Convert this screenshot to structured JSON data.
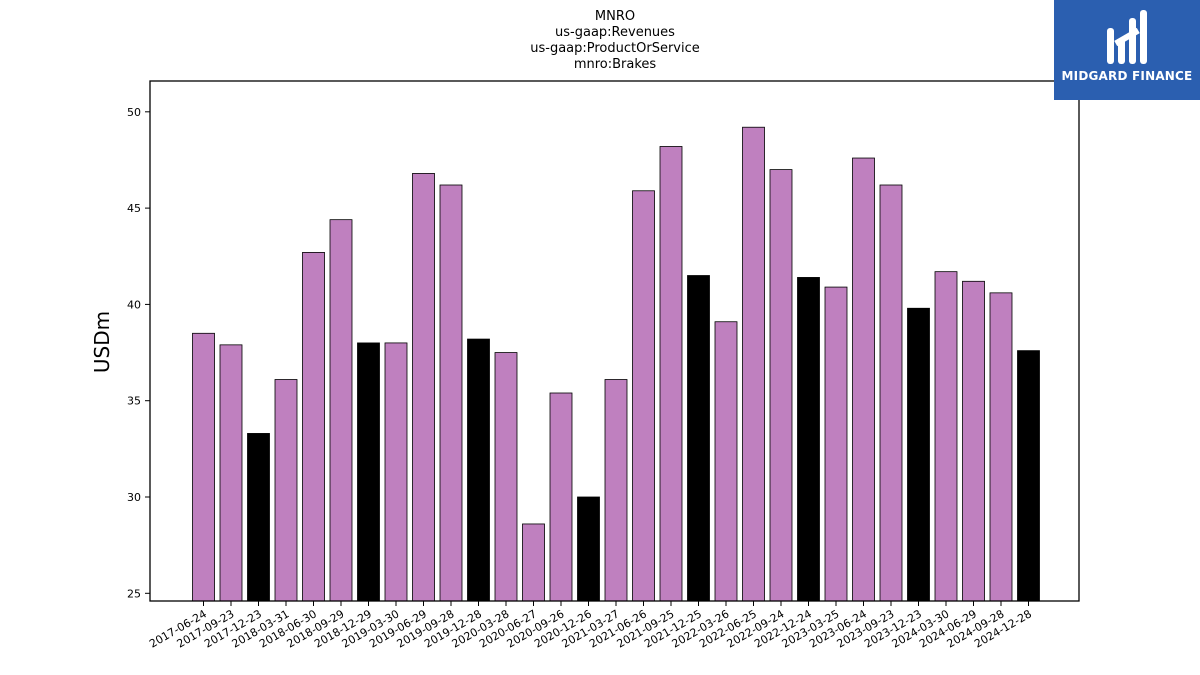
{
  "brand": {
    "name": "MIDGARD FINANCE",
    "bg_color": "#2b5fb0"
  },
  "chart_data": {
    "type": "bar",
    "title_lines": [
      "MNRO",
      "us-gaap:Revenues",
      "us-gaap:ProductOrService",
      "mnro:Brakes"
    ],
    "xlabel": "",
    "ylabel": "USDm",
    "ylim": [
      24.6,
      51.6
    ],
    "yticks": [
      25,
      30,
      35,
      40,
      45,
      50
    ],
    "grid": false,
    "colors": {
      "quarter": "#bf80bf",
      "fiscal_q4": "#000000",
      "edge": "#000000"
    },
    "categories": [
      "2017-06-24",
      "2017-09-23",
      "2017-12-23",
      "2018-03-31",
      "2018-06-30",
      "2018-09-29",
      "2018-12-29",
      "2019-03-30",
      "2019-06-29",
      "2019-09-28",
      "2019-12-28",
      "2020-03-28",
      "2020-06-27",
      "2020-09-26",
      "2020-12-26",
      "2021-03-27",
      "2021-06-26",
      "2021-09-25",
      "2021-12-25",
      "2022-03-26",
      "2022-06-25",
      "2022-09-24",
      "2022-12-24",
      "2023-03-25",
      "2023-06-24",
      "2023-09-23",
      "2023-12-23",
      "2024-03-30",
      "2024-06-29",
      "2024-09-28",
      "2024-12-28"
    ],
    "values": [
      38.5,
      37.9,
      33.3,
      36.1,
      42.7,
      44.4,
      38.0,
      38.0,
      46.8,
      46.2,
      38.2,
      37.5,
      28.6,
      35.4,
      30.0,
      36.1,
      45.9,
      48.2,
      41.5,
      39.1,
      49.2,
      47.0,
      41.4,
      40.9,
      47.6,
      46.2,
      39.8,
      41.7,
      41.2,
      40.6,
      37.6
    ],
    "highlight": [
      false,
      false,
      true,
      false,
      false,
      false,
      true,
      false,
      false,
      false,
      true,
      false,
      false,
      false,
      true,
      false,
      false,
      false,
      true,
      false,
      false,
      false,
      true,
      false,
      false,
      false,
      true,
      false,
      false,
      false,
      true
    ]
  }
}
